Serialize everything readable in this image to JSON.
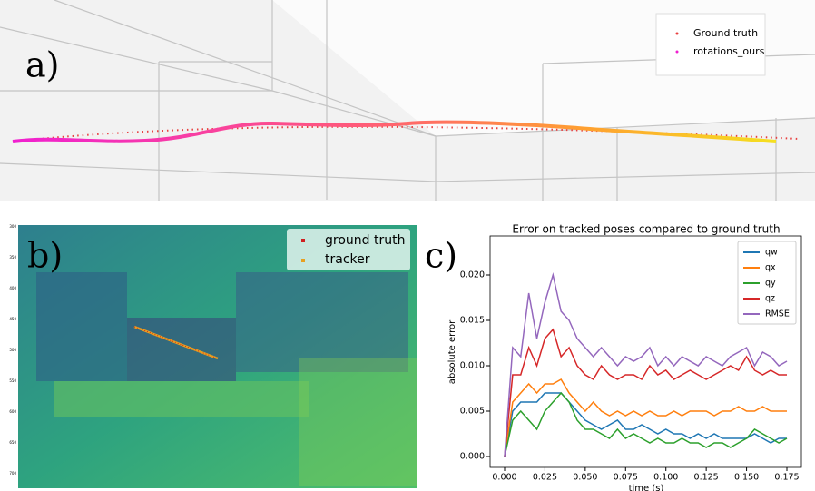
{
  "panel_a": {
    "label": "a)",
    "legend": [
      "Ground truth",
      "rotations_ours"
    ]
  },
  "panel_b": {
    "label": "b)",
    "legend": [
      "ground truth",
      "tracker"
    ],
    "yticks": [
      "300",
      "350",
      "400",
      "450",
      "500",
      "550",
      "600",
      "650",
      "700"
    ]
  },
  "panel_c": {
    "label": "c)"
  },
  "chart_data": {
    "type": "line",
    "title": "Error on tracked poses compared to ground truth",
    "xlabel": "time (s)",
    "ylabel": "absolute error",
    "x": [
      0,
      0.005,
      0.01,
      0.015,
      0.02,
      0.025,
      0.03,
      0.035,
      0.04,
      0.045,
      0.05,
      0.055,
      0.06,
      0.065,
      0.07,
      0.075,
      0.08,
      0.085,
      0.09,
      0.095,
      0.1,
      0.105,
      0.11,
      0.115,
      0.12,
      0.125,
      0.13,
      0.135,
      0.14,
      0.145,
      0.15,
      0.155,
      0.16,
      0.165,
      0.17,
      0.175
    ],
    "series": [
      {
        "name": "qw",
        "color": "#1f77b4",
        "values": [
          0,
          0.005,
          0.006,
          0.006,
          0.006,
          0.007,
          0.007,
          0.007,
          0.006,
          0.005,
          0.004,
          0.0035,
          0.003,
          0.0035,
          0.004,
          0.003,
          0.003,
          0.0035,
          0.003,
          0.0025,
          0.003,
          0.0025,
          0.0025,
          0.002,
          0.0025,
          0.002,
          0.0025,
          0.002,
          0.002,
          0.002,
          0.002,
          0.0025,
          0.002,
          0.0015,
          0.002,
          0.002
        ]
      },
      {
        "name": "qx",
        "color": "#ff7f0e",
        "values": [
          0,
          0.006,
          0.007,
          0.008,
          0.007,
          0.008,
          0.008,
          0.0085,
          0.007,
          0.006,
          0.005,
          0.006,
          0.005,
          0.0045,
          0.005,
          0.0045,
          0.005,
          0.0045,
          0.005,
          0.0045,
          0.0045,
          0.005,
          0.0045,
          0.005,
          0.005,
          0.005,
          0.0045,
          0.005,
          0.005,
          0.0055,
          0.005,
          0.005,
          0.0055,
          0.005,
          0.005,
          0.005
        ]
      },
      {
        "name": "qy",
        "color": "#2ca02c",
        "values": [
          0,
          0.004,
          0.005,
          0.004,
          0.003,
          0.005,
          0.006,
          0.007,
          0.006,
          0.004,
          0.003,
          0.003,
          0.0025,
          0.002,
          0.003,
          0.002,
          0.0025,
          0.002,
          0.0015,
          0.002,
          0.0015,
          0.0015,
          0.002,
          0.0015,
          0.0015,
          0.001,
          0.0015,
          0.0015,
          0.001,
          0.0015,
          0.002,
          0.003,
          0.0025,
          0.002,
          0.0015,
          0.002
        ]
      },
      {
        "name": "qz",
        "color": "#d62728",
        "values": [
          0,
          0.009,
          0.009,
          0.012,
          0.01,
          0.013,
          0.014,
          0.011,
          0.012,
          0.01,
          0.009,
          0.0085,
          0.01,
          0.009,
          0.0085,
          0.009,
          0.009,
          0.0085,
          0.01,
          0.009,
          0.0095,
          0.0085,
          0.009,
          0.0095,
          0.009,
          0.0085,
          0.009,
          0.0095,
          0.01,
          0.0095,
          0.011,
          0.0095,
          0.009,
          0.0095,
          0.009,
          0.009
        ]
      },
      {
        "name": "RMSE",
        "color": "#9467bd",
        "values": [
          0,
          0.012,
          0.011,
          0.018,
          0.013,
          0.017,
          0.02,
          0.016,
          0.015,
          0.013,
          0.012,
          0.011,
          0.012,
          0.011,
          0.01,
          0.011,
          0.0105,
          0.011,
          0.012,
          0.01,
          0.011,
          0.01,
          0.011,
          0.0105,
          0.01,
          0.011,
          0.0105,
          0.01,
          0.011,
          0.0115,
          0.012,
          0.01,
          0.0115,
          0.011,
          0.01,
          0.0105
        ]
      }
    ],
    "xlim": [
      -0.009,
      0.184
    ],
    "ylim": [
      -0.0012,
      0.0243
    ],
    "xticks": [
      {
        "value": 0,
        "label": "0.000"
      },
      {
        "value": 0.025,
        "label": "0.025"
      },
      {
        "value": 0.05,
        "label": "0.050"
      },
      {
        "value": 0.075,
        "label": "0.075"
      },
      {
        "value": 0.1,
        "label": "0.100"
      },
      {
        "value": 0.125,
        "label": "0.125"
      },
      {
        "value": 0.15,
        "label": "0.150"
      },
      {
        "value": 0.175,
        "label": "0.175"
      }
    ],
    "yticks": [
      {
        "value": 0,
        "label": "0.000"
      },
      {
        "value": 0.005,
        "label": "0.005"
      },
      {
        "value": 0.01,
        "label": "0.010"
      },
      {
        "value": 0.015,
        "label": "0.015"
      },
      {
        "value": 0.02,
        "label": "0.020"
      }
    ],
    "legend": "upper right",
    "grid": false
  }
}
